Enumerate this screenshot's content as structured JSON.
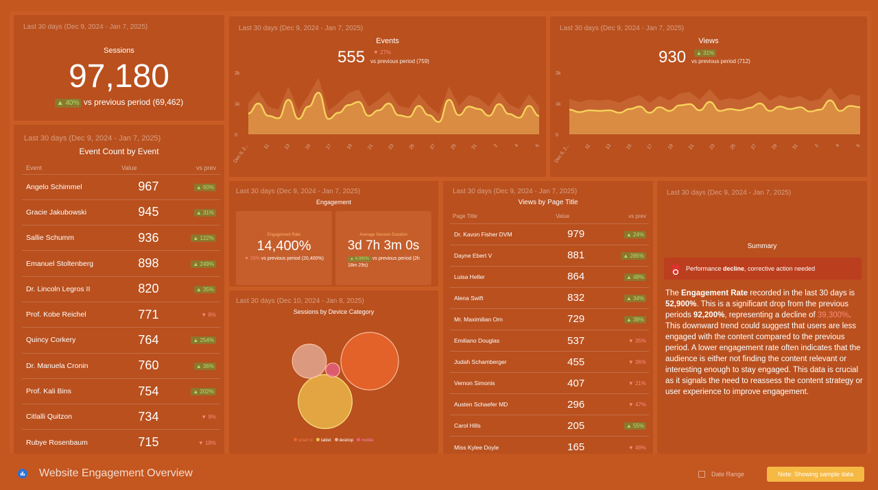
{
  "sessions": {
    "period": "Last 30 days (Dec 9, 2024 - Jan 7, 2025)",
    "title": "Sessions",
    "value": "97,180",
    "change": "▲ 40%",
    "comparison": "vs previous period (69,462)"
  },
  "events_chart": {
    "period": "Last 30 days (Dec 9, 2024 - Jan 7, 2025)",
    "title": "Events",
    "value": "555",
    "change": "▼ 27%",
    "comparison": "vs previous period (759)"
  },
  "views_chart": {
    "period": "Last 30 days (Dec 9, 2024 - Jan 7, 2025)",
    "title": "Views",
    "value": "930",
    "change": "▲ 31%",
    "comparison": "vs previous period (712)"
  },
  "event_count": {
    "period": "Last 30 days (Dec 9, 2024 - Jan 7, 2025)",
    "title": "Event Count by Event",
    "headers": [
      "Event",
      "Value",
      "vs prev"
    ],
    "rows": [
      {
        "name": "Angelo Schimmel",
        "value": "967",
        "change": "▲ 60%",
        "dir": "up"
      },
      {
        "name": "Gracie Jakubowski",
        "value": "945",
        "change": "▲ 31%",
        "dir": "up"
      },
      {
        "name": "Sallie Schumm",
        "value": "936",
        "change": "▲ 122%",
        "dir": "up"
      },
      {
        "name": "Emanuel Stoltenberg",
        "value": "898",
        "change": "▲ 249%",
        "dir": "up"
      },
      {
        "name": "Dr. Lincoln Legros II",
        "value": "820",
        "change": "▲ 35%",
        "dir": "up"
      },
      {
        "name": "Prof. Kobe Reichel",
        "value": "771",
        "change": "▼ 8%",
        "dir": "down"
      },
      {
        "name": "Quincy Corkery",
        "value": "764",
        "change": "▲ 254%",
        "dir": "up"
      },
      {
        "name": "Dr. Manuela Cronin",
        "value": "760",
        "change": "▲ 36%",
        "dir": "up"
      },
      {
        "name": "Prof. Kali Bins",
        "value": "754",
        "change": "▲ 202%",
        "dir": "up"
      },
      {
        "name": "Citlalli Quitzon",
        "value": "734",
        "change": "▼ 9%",
        "dir": "down"
      },
      {
        "name": "Rubye Rosenbaum",
        "value": "715",
        "change": "▼ 18%",
        "dir": "down"
      }
    ]
  },
  "engagement": {
    "period": "Last 30 days (Dec 9, 2024 - Jan 7, 2025)",
    "title": "Engagement",
    "rate_label": "Engagement Rate",
    "rate_value": "14,400%",
    "rate_change": "▼ 29%",
    "rate_comparison": "vs previous period (20,400%)",
    "duration_label": "Average Session Duration",
    "duration_value": "3d 7h 3m 0s",
    "duration_change": "▲ 4,000%",
    "duration_comparison": "vs previous period (2h 18m 29s)"
  },
  "device": {
    "period": "Last 30 days (Dec 10, 2024 - Jan 8, 2025)",
    "title": "Sessions by Device Category",
    "legend": [
      {
        "label": "smart tv",
        "color": "#e8642a"
      },
      {
        "label": "tablet",
        "color": "#f2c14e"
      },
      {
        "label": "desktop",
        "color": "#e7b2a0"
      },
      {
        "label": "mobile",
        "color": "#e8608a"
      }
    ]
  },
  "page_views": {
    "period": "Last 30 days (Dec 9, 2024 - Jan 7, 2025)",
    "title": "Views by Page Title",
    "headers": [
      "Page Title",
      "Value",
      "vs prev"
    ],
    "rows": [
      {
        "name": "Dr. Kavon Fisher DVM",
        "value": "979",
        "change": "▲ 24%",
        "dir": "up"
      },
      {
        "name": "Dayne Ebert V",
        "value": "881",
        "change": "▲ 285%",
        "dir": "up"
      },
      {
        "name": "Luisa Heller",
        "value": "864",
        "change": "▲ 48%",
        "dir": "up"
      },
      {
        "name": "Alena Swift",
        "value": "832",
        "change": "▲ 34%",
        "dir": "up"
      },
      {
        "name": "Mr. Maximilian Orn",
        "value": "729",
        "change": "▲ 38%",
        "dir": "up"
      },
      {
        "name": "Emiliano Douglas",
        "value": "537",
        "change": "▼ 35%",
        "dir": "down"
      },
      {
        "name": "Judah Schamberger",
        "value": "455",
        "change": "▼ 36%",
        "dir": "down"
      },
      {
        "name": "Vernon Simonis",
        "value": "407",
        "change": "▼ 21%",
        "dir": "down"
      },
      {
        "name": "Austen Schaefer MD",
        "value": "296",
        "change": "▼ 47%",
        "dir": "down"
      },
      {
        "name": "Carol Hills",
        "value": "205",
        "change": "▲ 55%",
        "dir": "up"
      },
      {
        "name": "Miss Kylee Doyle",
        "value": "165",
        "change": "▼ 49%",
        "dir": "down"
      }
    ]
  },
  "summary": {
    "period": "Last 30 days (Dec 9, 2024 - Jan 7, 2025)",
    "title": "Summary",
    "alert_pre": "Performance ",
    "alert_bold": "decline",
    "alert_post": ", corrective action needed",
    "t1": "The ",
    "t2": "Engagement Rate",
    "t3": " recorded in the last 30 days is ",
    "t4": "52,900%",
    "t5": ". This is a significant drop from the previous periods ",
    "t6": "92,200%",
    "t7": ", representing a decline of ",
    "t8": "39,300%",
    "t9": ". This downward trend could suggest that users are less engaged with the content compared to the previous period. A lower engagement rate often indicates that the audience is either not finding the content relevant or interesting enough to stay engaged. This data is crucial as it signals the need to reassess the content strategy or user experience to improve engagement."
  },
  "footer": {
    "title": "Website Engagement Overview",
    "date_range": "Date Range",
    "note": "Note: Showing sample data"
  },
  "chart_data": [
    {
      "type": "area",
      "title": "Events",
      "ylim": [
        0,
        2000
      ],
      "y_ticks": [
        "2k",
        "1k",
        "0"
      ],
      "x_ticks": [
        "Dec 9, 2...",
        "11",
        "13",
        "15",
        "17",
        "19",
        "21",
        "23",
        "25",
        "27",
        "29",
        "31",
        "2",
        "4",
        "6"
      ],
      "series": [
        {
          "name": "Events",
          "values": [
            680,
            1000,
            600,
            520,
            1120,
            500,
            900,
            1350,
            500,
            700,
            950,
            1050,
            600,
            780,
            1000,
            620,
            560,
            920,
            620,
            400,
            1120,
            620,
            900,
            820,
            600,
            980,
            660,
            540,
            920,
            600
          ]
        }
      ]
    },
    {
      "type": "area",
      "title": "Views",
      "ylim": [
        0,
        2000
      ],
      "y_ticks": [
        "2k",
        "1k",
        "0"
      ],
      "x_ticks": [
        "Dec 9, 2...",
        "11",
        "13",
        "15",
        "17",
        "19",
        "21",
        "23",
        "25",
        "27",
        "29",
        "31",
        "2",
        "4",
        "6"
      ],
      "series": [
        {
          "name": "Views",
          "values": [
            800,
            720,
            780,
            760,
            780,
            700,
            820,
            900,
            700,
            880,
            760,
            940,
            980,
            780,
            1050,
            760,
            820,
            780,
            860,
            1000,
            760,
            900,
            820,
            880,
            740,
            800,
            1100,
            760,
            920,
            880
          ]
        }
      ]
    },
    {
      "type": "bubble",
      "title": "Sessions by Device Category",
      "categories": [
        "smart tv",
        "tablet",
        "desktop",
        "mobile"
      ],
      "values": [
        100,
        88,
        35,
        6
      ]
    }
  ]
}
